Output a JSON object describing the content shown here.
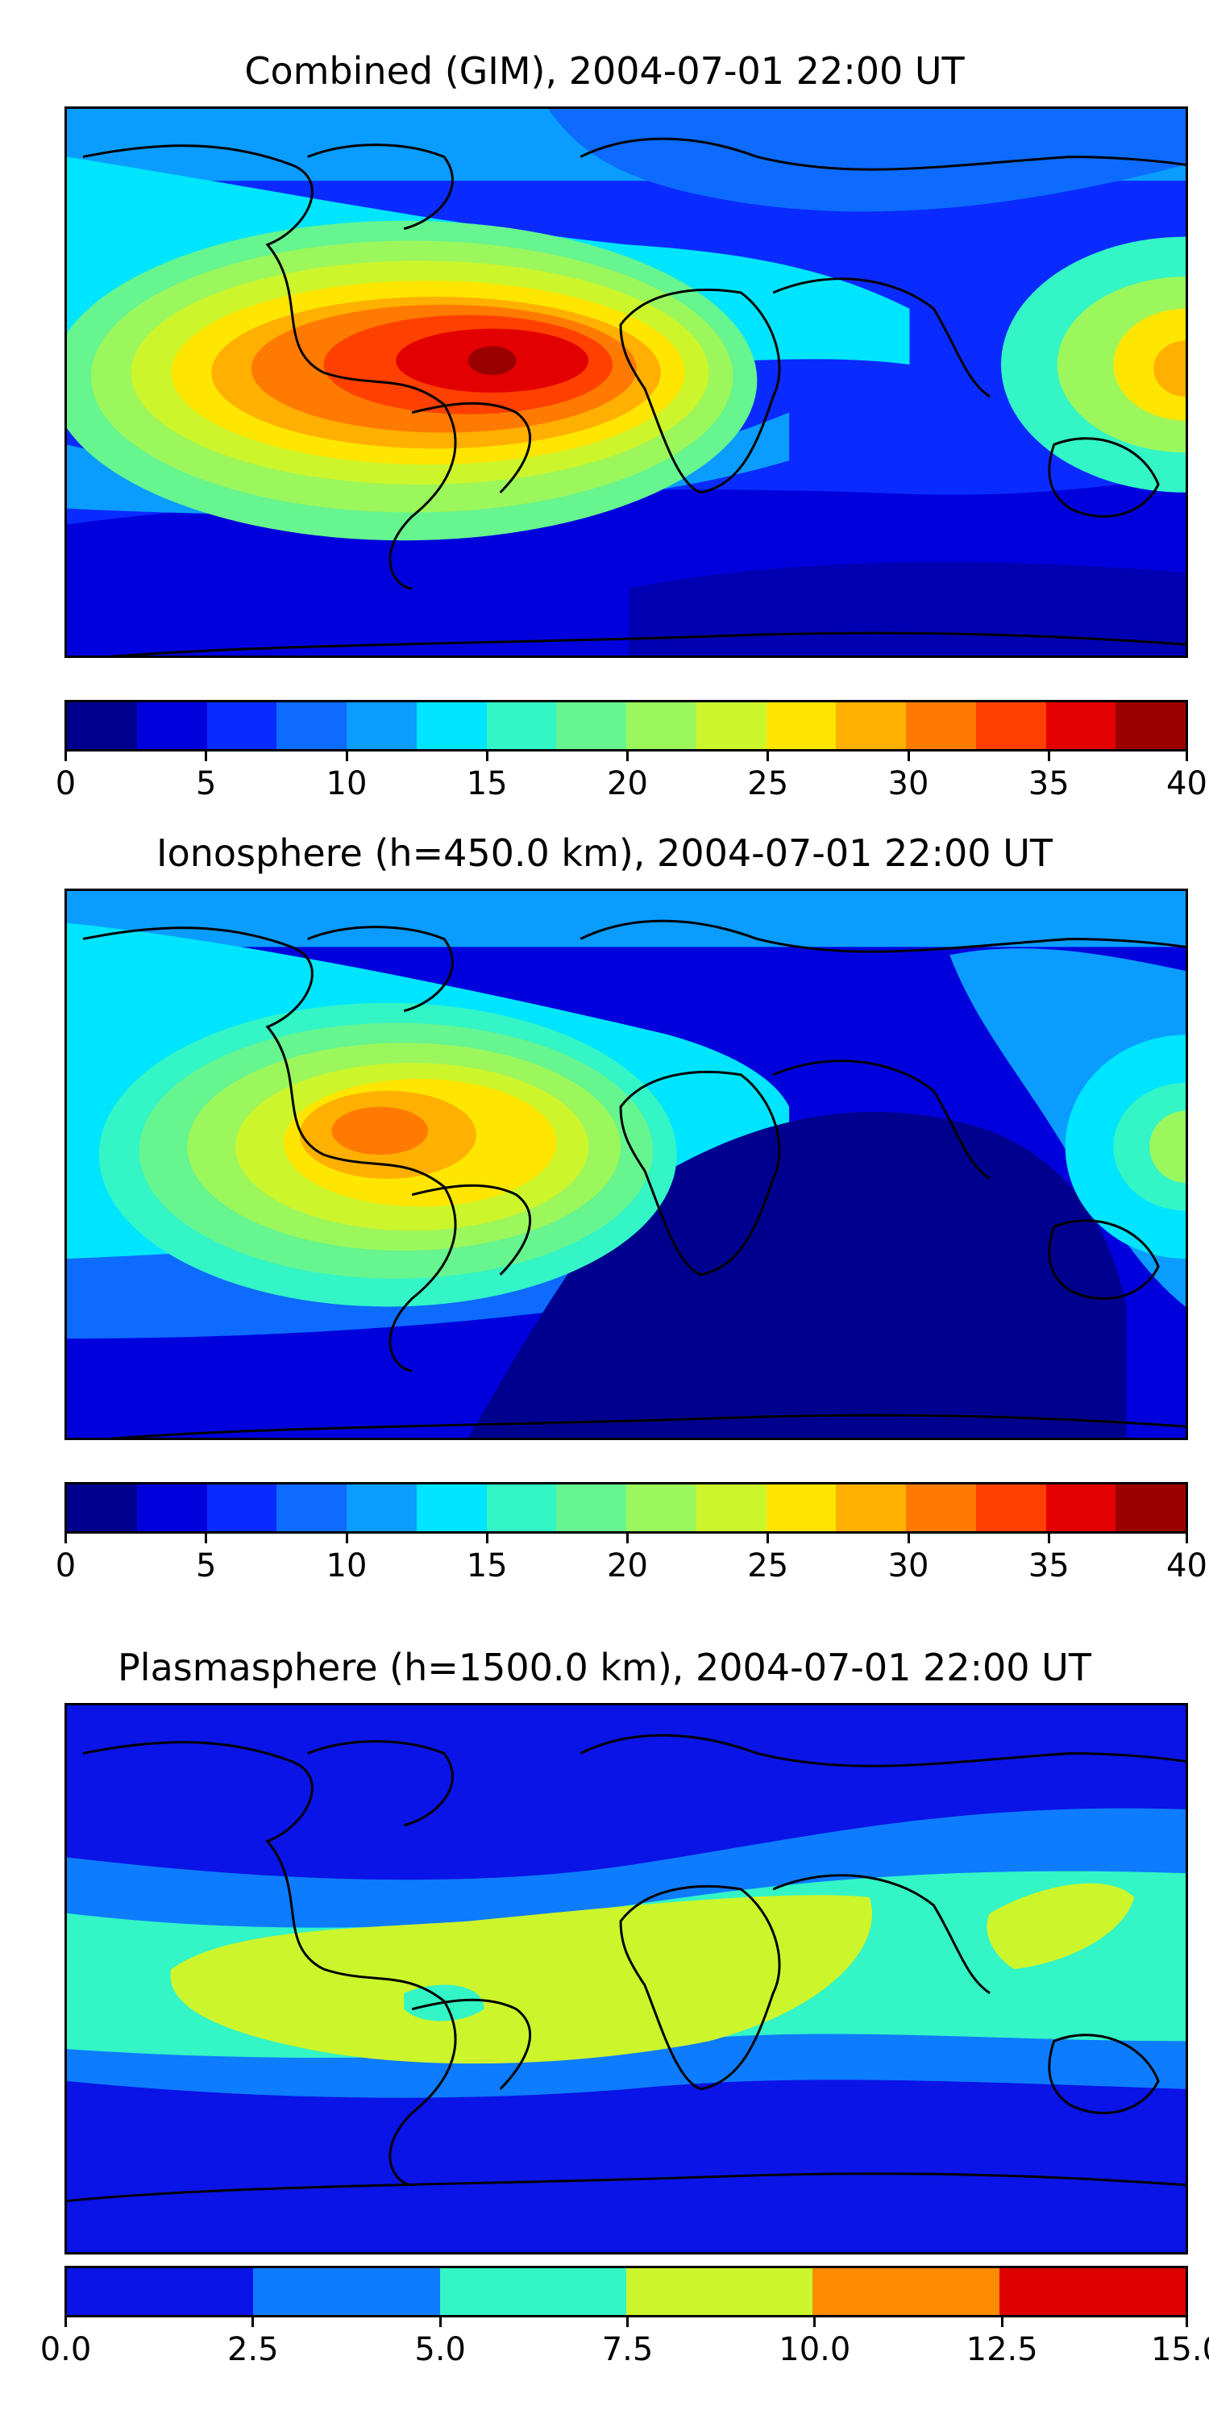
{
  "panels": [
    {
      "title": "Combined (GIM), 2004-07-01 22:00 UT",
      "colors": [
        "#00008f",
        "#0000dd",
        "#0a2bff",
        "#0d6bff",
        "#0a9dff",
        "#00e5ff",
        "#33f5c6",
        "#66f58f",
        "#9bf75b",
        "#ccf52c",
        "#ffe600",
        "#ffb000",
        "#ff7a00",
        "#ff4000",
        "#e30000",
        "#9a0000"
      ],
      "ticks": [
        "0",
        "5",
        "10",
        "15",
        "20",
        "25",
        "30",
        "35",
        "40"
      ],
      "map": {
        "background_color": "#0a2bff",
        "feature": "TEC peak over Central America and tropical Pacific"
      }
    },
    {
      "title": "Ionosphere  (h=450.0 km), 2004-07-01 22:00 UT",
      "colors": [
        "#00008f",
        "#0000dd",
        "#0a2bff",
        "#0d6bff",
        "#0a9dff",
        "#00e5ff",
        "#33f5c6",
        "#66f58f",
        "#9bf75b",
        "#ccf52c",
        "#ffe600",
        "#ffb000",
        "#ff7a00",
        "#ff4000",
        "#e30000",
        "#9a0000"
      ],
      "ticks": [
        "0",
        "5",
        "10",
        "15",
        "20",
        "25",
        "30",
        "35",
        "40"
      ],
      "map": {
        "background_color": "#0000dd",
        "feature": "ionospheric peak over Central America"
      }
    },
    {
      "title": "Plasmasphere (h=1500.0 km), 2004-07-01 22:00 UT",
      "colors": [
        "#0a14e6",
        "#0d7cff",
        "#33f5c6",
        "#ccf52c",
        "#ff8c00",
        "#dd0000"
      ],
      "ticks": [
        "0.0",
        "2.5",
        "5.0",
        "7.5",
        "10.0",
        "12.5",
        "15.0"
      ],
      "map": {
        "background_color": "#0a14e6",
        "feature": "low-latitude plasmasphere band"
      }
    }
  ]
}
